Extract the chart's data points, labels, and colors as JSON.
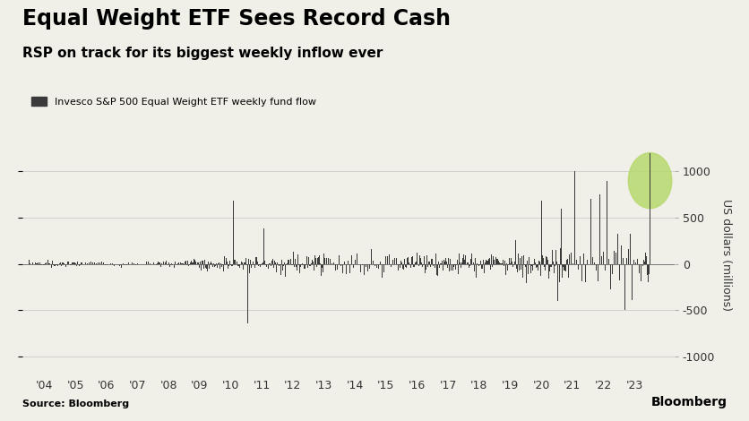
{
  "title": "Equal Weight ETF Sees Record Cash",
  "subtitle": "RSP on track for its biggest weekly inflow ever",
  "legend_label": "Invesco S&P 500 Equal Weight ETF weekly fund flow",
  "ylabel": "US dollars (millions)",
  "source": "Source: Bloomberg",
  "watermark": "Bloomberg",
  "bar_color": "#3a3a3a",
  "highlight_color": "#b8d96e",
  "background_color": "#f0efe8",
  "grid_color": "#cccccc",
  "ylim": [
    -1150,
    1350
  ],
  "yticks": [
    -1000,
    -500,
    0,
    500,
    1000
  ],
  "xtick_labels": [
    "'04",
    "'05",
    "'06",
    "'07",
    "'08",
    "'09",
    "'10",
    "'11",
    "'12",
    "'13",
    "'14",
    "'15",
    "'16",
    "'17",
    "'18",
    "'19",
    "'20",
    "'21",
    "'22",
    "'23"
  ],
  "title_fontsize": 17,
  "subtitle_fontsize": 11,
  "legend_fontsize": 8,
  "tick_fontsize": 9,
  "ylabel_fontsize": 9,
  "source_fontsize": 8,
  "watermark_fontsize": 10
}
